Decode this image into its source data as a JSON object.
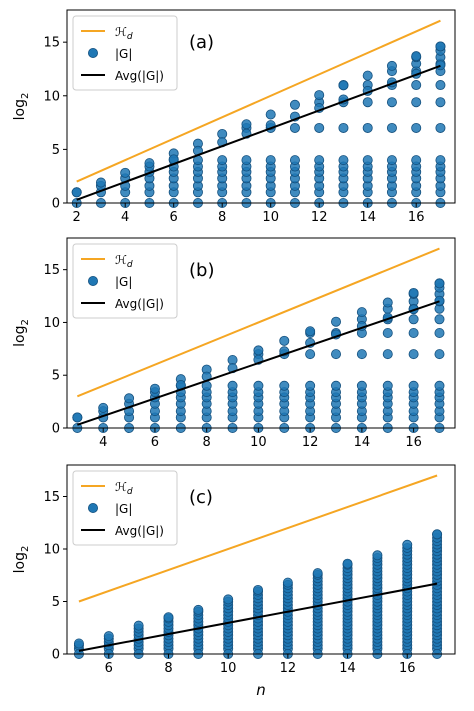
{
  "figure": {
    "ylabel": "log",
    "ylabel_sub": "2",
    "xlabel": "n"
  },
  "colors": {
    "hd_line": "#f5a623",
    "points": "#1f77b4",
    "avg_line": "#000000"
  },
  "chart_data": [
    {
      "type": "scatter",
      "panel_label": "(a)",
      "xlim": [
        1.6,
        17.6
      ],
      "ylim": [
        0,
        18
      ],
      "xticks": [
        2,
        4,
        6,
        8,
        10,
        12,
        14,
        16
      ],
      "yticks": [
        0,
        5,
        10,
        15
      ],
      "n_range": [
        2,
        17
      ],
      "legend": [
        "H_d",
        "|G|",
        "Avg(|G|)"
      ],
      "legend_position": "upper left",
      "series": [
        {
          "name": "H_d",
          "kind": "line",
          "x": [
            2,
            17
          ],
          "y": [
            2,
            17
          ]
        },
        {
          "name": "Avg(|G|)",
          "kind": "line",
          "x": [
            2,
            17
          ],
          "y": [
            0.3,
            12.8
          ]
        },
        {
          "name": "|G|",
          "kind": "scatter",
          "levels": [
            0,
            1,
            1.6,
            2.3,
            2.9,
            3.4,
            4.0,
            7.0,
            9.4,
            11.0,
            12.3,
            13.0,
            13.6,
            14.2,
            14.6
          ],
          "top_start": 1,
          "top_end": 14.6
        }
      ]
    },
    {
      "type": "scatter",
      "panel_label": "(b)",
      "xlim": [
        2.6,
        17.6
      ],
      "ylim": [
        0,
        18
      ],
      "xticks": [
        4,
        6,
        8,
        10,
        12,
        14,
        16
      ],
      "yticks": [
        0,
        5,
        10,
        15
      ],
      "n_range": [
        3,
        17
      ],
      "legend": [
        "H_d",
        "|G|",
        "Avg(|G|)"
      ],
      "legend_position": "upper left",
      "series": [
        {
          "name": "H_d",
          "kind": "line",
          "x": [
            3,
            17
          ],
          "y": [
            3,
            17
          ]
        },
        {
          "name": "Avg(|G|)",
          "kind": "line",
          "x": [
            3,
            17
          ],
          "y": [
            0.3,
            12.0
          ]
        },
        {
          "name": "|G|",
          "kind": "scatter",
          "levels": [
            0,
            1,
            1.6,
            2.3,
            2.9,
            3.4,
            4.0,
            7.0,
            9.0,
            10.3,
            11.3,
            12.0,
            12.7,
            13.3,
            13.7
          ],
          "top_start": 1,
          "top_end": 13.7
        }
      ]
    },
    {
      "type": "scatter",
      "panel_label": "(c)",
      "xlim": [
        4.6,
        17.6
      ],
      "ylim": [
        0,
        18
      ],
      "xticks": [
        6,
        8,
        10,
        12,
        14,
        16
      ],
      "yticks": [
        0,
        5,
        10,
        15
      ],
      "n_range": [
        5,
        17
      ],
      "legend": [
        "H_d",
        "|G|",
        "Avg(|G|)"
      ],
      "legend_position": "upper left",
      "series": [
        {
          "name": "H_d",
          "kind": "line",
          "x": [
            5,
            17
          ],
          "y": [
            5,
            17
          ]
        },
        {
          "name": "Avg(|G|)",
          "kind": "line",
          "x": [
            5,
            17
          ],
          "y": [
            0.3,
            6.7
          ]
        },
        {
          "name": "|G|",
          "kind": "dense",
          "top": [
            1.0,
            1.7,
            2.7,
            3.5,
            4.2,
            5.2,
            6.1,
            6.8,
            7.7,
            8.6,
            9.4,
            10.4,
            11.4
          ]
        }
      ]
    }
  ]
}
